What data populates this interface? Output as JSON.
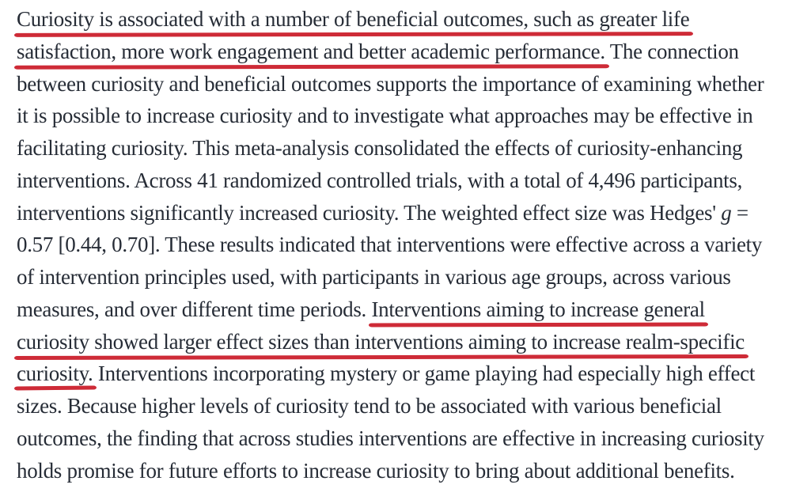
{
  "colors": {
    "background": "#ffffff",
    "text": "#262c36",
    "underline": "#ce2b37"
  },
  "abstract": {
    "lines": [
      {
        "segments": [
          {
            "t": "Curiosity is associated with a number of beneficial outcomes, such as greater life",
            "u": true
          }
        ]
      },
      {
        "segments": [
          {
            "t": "satisfaction, more work engagement and better academic performance.",
            "u": true
          },
          {
            "t": " The connection"
          }
        ]
      },
      {
        "segments": [
          {
            "t": "between curiosity and beneficial outcomes supports the importance of examining whether"
          }
        ]
      },
      {
        "segments": [
          {
            "t": "it is possible to increase curiosity and to investigate what approaches may be effective in"
          }
        ]
      },
      {
        "segments": [
          {
            "t": "facilitating curiosity. This meta-analysis consolidated the effects of curiosity-enhancing"
          }
        ]
      },
      {
        "segments": [
          {
            "t": "interventions. Across 41 randomized controlled trials, with a total of 4,496 participants,"
          }
        ]
      },
      {
        "segments": [
          {
            "t": "interventions significantly increased curiosity. The weighted effect size was Hedges' "
          },
          {
            "t": "g",
            "i": true
          },
          {
            "t": " ="
          }
        ]
      },
      {
        "segments": [
          {
            "t": "0.57 [0.44, 0.70]. These results indicated that interventions were effective across a variety"
          }
        ]
      },
      {
        "segments": [
          {
            "t": "of intervention principles used, with participants in various age groups, across various"
          }
        ]
      },
      {
        "segments": [
          {
            "t": "measures, and over different time periods. "
          },
          {
            "t": "Interventions aiming to increase general",
            "u": true
          }
        ]
      },
      {
        "segments": [
          {
            "t": "curiosity showed larger effect sizes than interventions aiming to increase realm-specific",
            "u": true
          }
        ]
      },
      {
        "segments": [
          {
            "t": "curiosity.",
            "u": true,
            "short": true
          },
          {
            "t": " Interventions incorporating mystery or game playing had especially high effect"
          }
        ]
      },
      {
        "segments": [
          {
            "t": "sizes. Because higher levels of curiosity tend to be associated with various beneficial"
          }
        ]
      },
      {
        "segments": [
          {
            "t": "outcomes, the finding that across studies interventions are effective in increasing curiosity"
          }
        ]
      },
      {
        "segments": [
          {
            "t": "holds promise for future efforts to increase curiosity to bring about additional benefits."
          }
        ]
      }
    ]
  }
}
